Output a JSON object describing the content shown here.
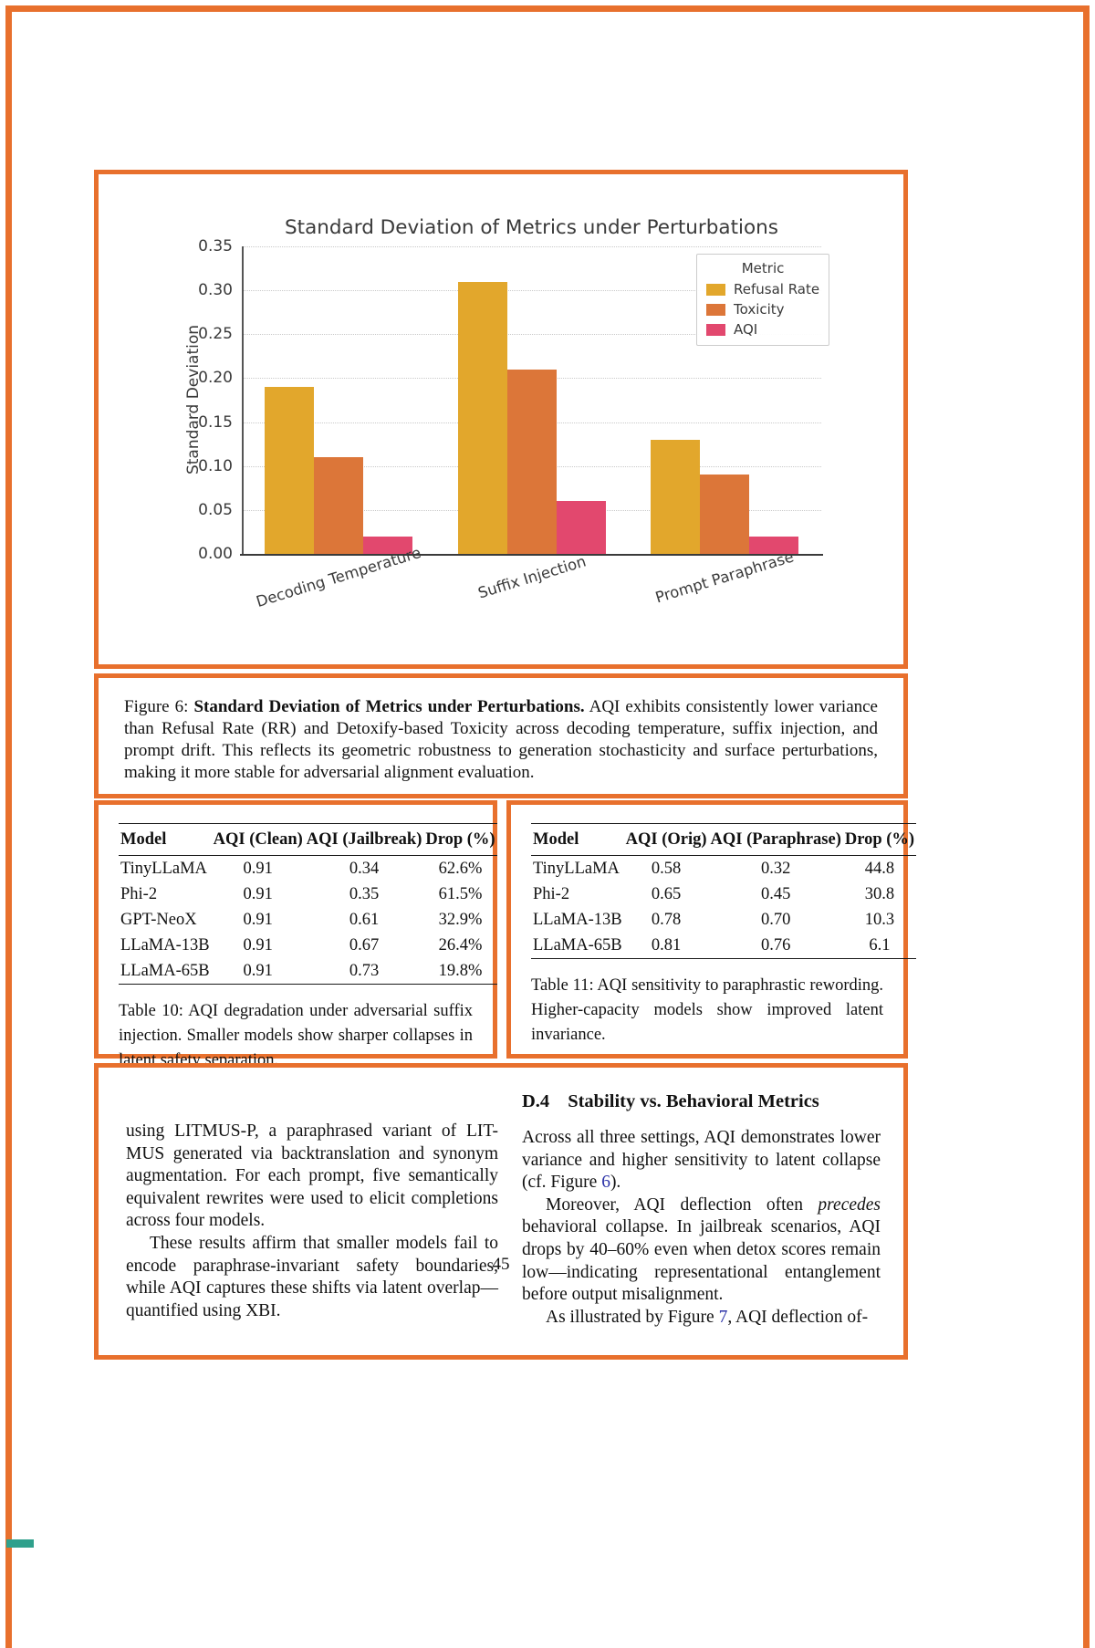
{
  "colors": {
    "frame_orange": "#E8702D",
    "teal_accent": "#2FA08C",
    "link_blue": "#2B32A8"
  },
  "chart_data": {
    "type": "bar",
    "title": "Standard Deviation of Metrics under Perturbations",
    "ylabel": "Standard Deviation",
    "xlabel": "",
    "categories": [
      "Decoding Temperature",
      "Suffix Injection",
      "Prompt Paraphrase"
    ],
    "series": [
      {
        "name": "Refusal Rate",
        "color": "#E2A72C",
        "values": [
          0.19,
          0.31,
          0.13
        ]
      },
      {
        "name": "Toxicity",
        "color": "#DC7639",
        "values": [
          0.11,
          0.21,
          0.09
        ]
      },
      {
        "name": "AQI",
        "color": "#E2486E",
        "values": [
          0.02,
          0.06,
          0.02
        ]
      }
    ],
    "ylim": [
      0,
      0.35
    ],
    "yticks": [
      0.0,
      0.05,
      0.1,
      0.15,
      0.2,
      0.25,
      0.3,
      0.35
    ],
    "grid": true,
    "legend_title": "Metric",
    "legend_position": "upper right"
  },
  "figure_caption": {
    "segments": [
      {
        "text": "Figure 6: "
      },
      {
        "text": "Standard Deviation of Metrics under Perturbations.",
        "style": "bold"
      },
      {
        "text": " AQI exhibits consistently lower variance than Refusal Rate (RR) and Detoxify-based Toxicity across decoding temperature, suffix injection, and prompt drift. This reflects its geometric robustness to generation stochasticity and surface perturbations, making it more stable for adversarial alignment evaluation."
      }
    ]
  },
  "table10": {
    "headers": [
      "Model",
      "AQI (Clean)",
      "AQI (Jailbreak)",
      "Drop (%)"
    ],
    "rows": [
      [
        "TinyLLaMA",
        "0.91",
        "0.34",
        "62.6%"
      ],
      [
        "Phi-2",
        "0.91",
        "0.35",
        "61.5%"
      ],
      [
        "GPT-NeoX",
        "0.91",
        "0.61",
        "32.9%"
      ],
      [
        "LLaMA-13B",
        "0.91",
        "0.67",
        "26.4%"
      ],
      [
        "LLaMA-65B",
        "0.91",
        "0.73",
        "19.8%"
      ]
    ],
    "caption": "Table 10: AQI degradation under adversarial suffix injection. Smaller models show sharper collapses in latent safety separation."
  },
  "table11": {
    "headers": [
      "Model",
      "AQI (Orig)",
      "AQI (Paraphrase)",
      "Drop (%)"
    ],
    "rows": [
      [
        "TinyLLaMA",
        "0.58",
        "0.32",
        "44.8"
      ],
      [
        "Phi-2",
        "0.65",
        "0.45",
        "30.8"
      ],
      [
        "LLaMA-13B",
        "0.78",
        "0.70",
        "10.3"
      ],
      [
        "LLaMA-65B",
        "0.81",
        "0.76",
        "6.1"
      ]
    ],
    "caption": "Table 11: AQI sensitivity to paraphrastic rewording. Higher-capacity models show improved latent invariance."
  },
  "body": {
    "left_column": {
      "paragraphs": [
        {
          "indent": false,
          "segments": [
            {
              "text": "using LITMUS-P, a paraphrased variant of LIT-MUS generated via backtranslation and synonym augmentation. For each prompt, five semantically equivalent rewrites were used to elicit completions across four models."
            }
          ]
        },
        {
          "indent": true,
          "segments": [
            {
              "text": "These results affirm that smaller models fail to encode paraphrase-invariant safety boundaries, while AQI captures these shifts via latent overlap—quantified using XBI."
            }
          ]
        }
      ]
    },
    "right_column": {
      "heading": {
        "number": "D.4",
        "title": "Stability vs. Behavioral Metrics"
      },
      "paragraphs": [
        {
          "indent": false,
          "segments": [
            {
              "text": "Across all three settings, AQI demonstrates lower variance and higher sensitivity to latent collapse (cf. Figure "
            },
            {
              "text": "6",
              "style": "link"
            },
            {
              "text": ")."
            }
          ]
        },
        {
          "indent": true,
          "segments": [
            {
              "text": "Moreover, AQI deflection often "
            },
            {
              "text": "precedes",
              "style": "italic"
            },
            {
              "text": " behavioral collapse. In jailbreak scenarios, AQI drops by 40–60% even when detox scores remain low—indicating representational entanglement before output misalignment."
            }
          ]
        },
        {
          "indent": true,
          "segments": [
            {
              "text": "As illustrated by Figure "
            },
            {
              "text": "7",
              "style": "link"
            },
            {
              "text": ", AQI deflection of-"
            }
          ]
        }
      ]
    },
    "page_number": "45"
  }
}
